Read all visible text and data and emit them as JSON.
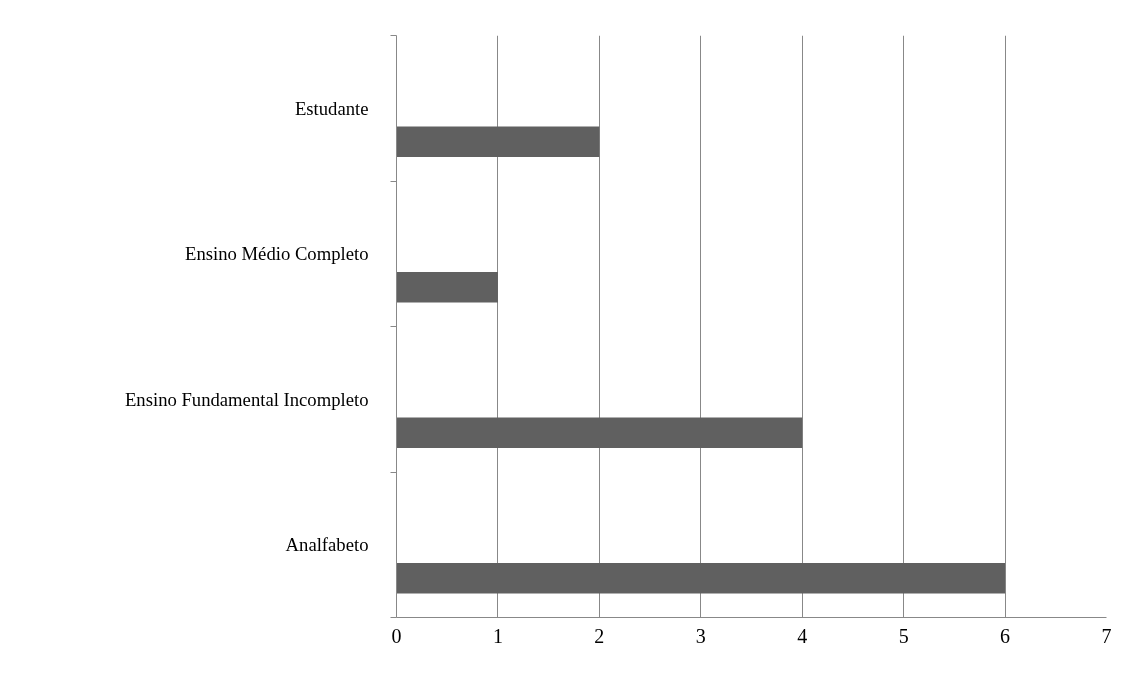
{
  "chart_data": {
    "type": "bar",
    "orientation": "horizontal",
    "categories": [
      "Estudante",
      "Ensino Médio Completo",
      "Ensino Fundamental Incompleto",
      "Analfabeto"
    ],
    "values": [
      2,
      1,
      4,
      6
    ],
    "color": "#606060",
    "xlim": [
      0,
      7
    ],
    "xticks": [
      0,
      1,
      2,
      3,
      4,
      5,
      6,
      7
    ],
    "grid": "x"
  }
}
